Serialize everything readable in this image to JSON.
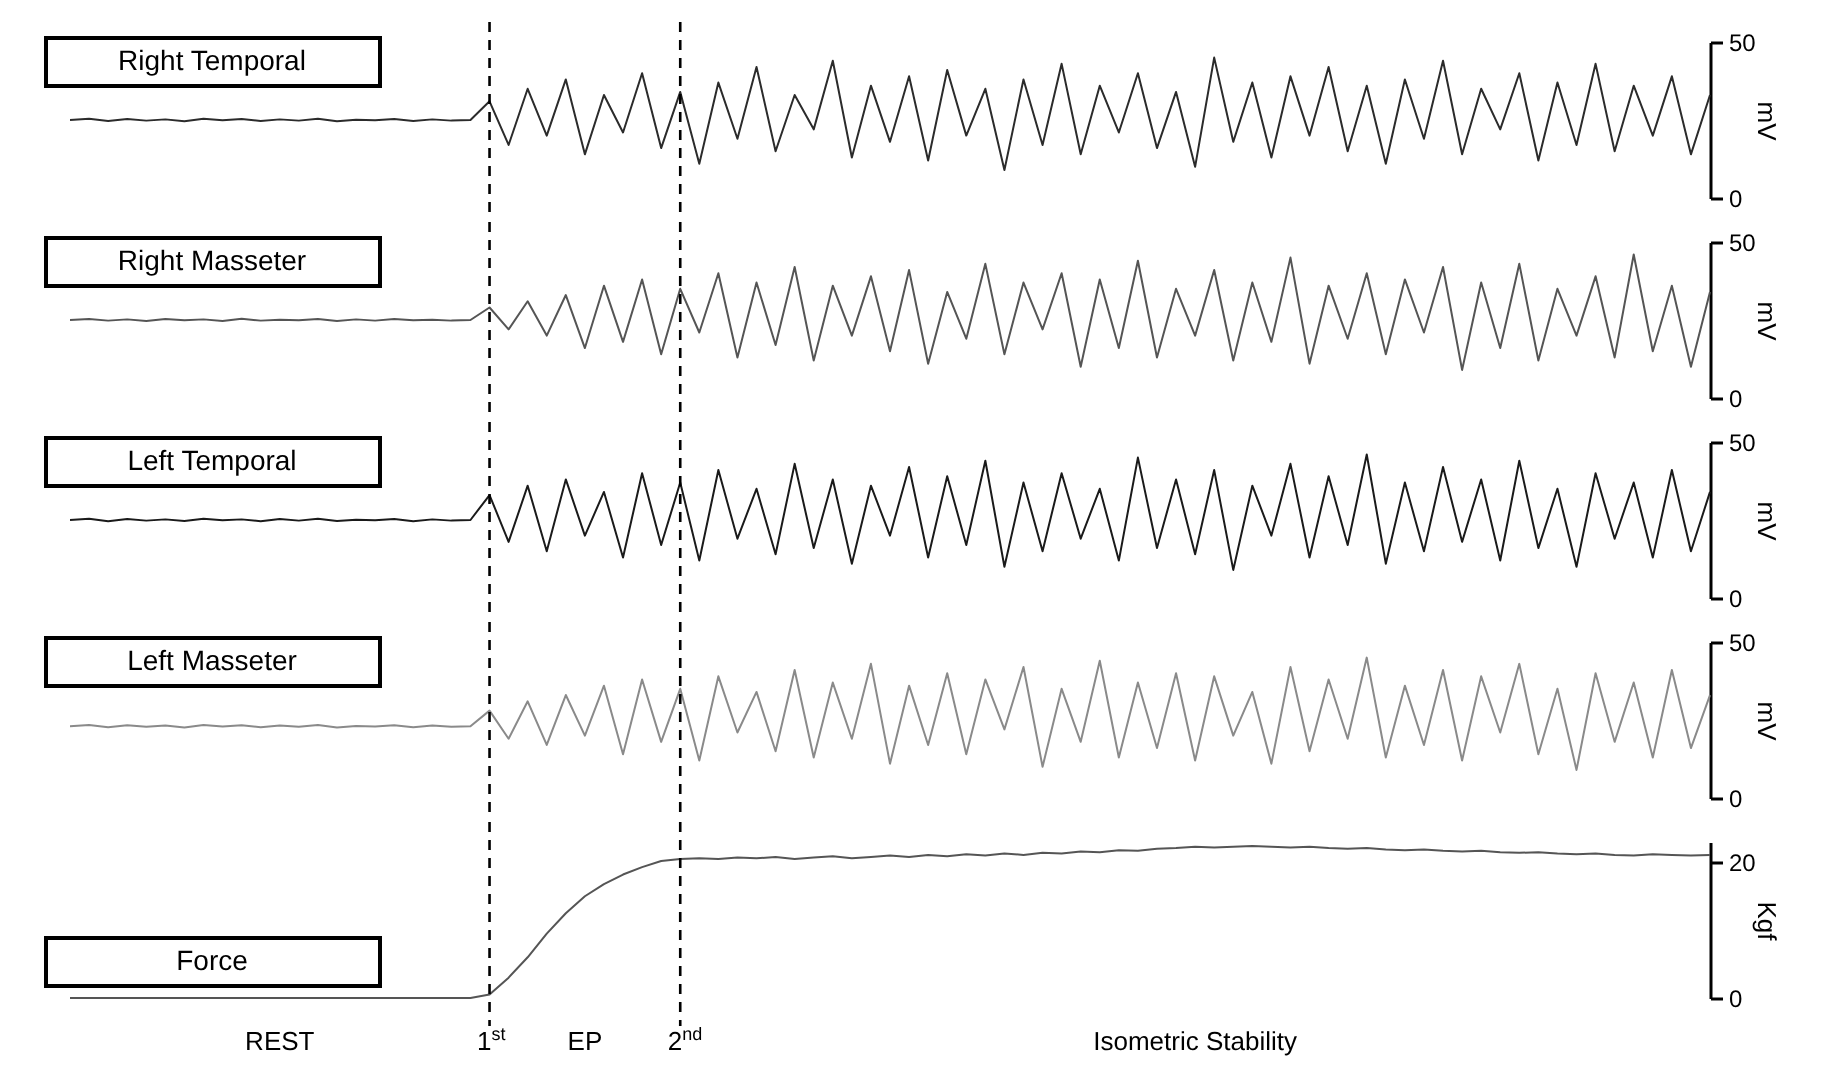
{
  "chart_data": [
    {
      "type": "line",
      "title": "Right Temporal",
      "ylabel": "mV",
      "ylim": [
        0,
        50
      ],
      "yticks": [
        0,
        50
      ],
      "tick_labels": "y",
      "grid": false,
      "categories": [
        null,
        null,
        null,
        null,
        null,
        null,
        null,
        null,
        null,
        null,
        null,
        null,
        null,
        null,
        null,
        null,
        null,
        null,
        null,
        null,
        null,
        null,
        null,
        null,
        null,
        null,
        null,
        null,
        null,
        null,
        null,
        null,
        null,
        null,
        null,
        null,
        null,
        null,
        null,
        null,
        null,
        null,
        null,
        null,
        null,
        null,
        null,
        null,
        null,
        null,
        null,
        null,
        null,
        null,
        null,
        null,
        null,
        null,
        null,
        null,
        null,
        null,
        null,
        null,
        null,
        null,
        null,
        null,
        null,
        null,
        null,
        null,
        null,
        null,
        null,
        null,
        null,
        null,
        null,
        null,
        null,
        null,
        null,
        null,
        null,
        null,
        null
      ],
      "series": [
        {
          "color": "#2b2b2b",
          "values": [
            25,
            25.4,
            24.7,
            25.3,
            24.8,
            25.2,
            24.6,
            25.4,
            24.9,
            25.3,
            24.7,
            25.2,
            24.8,
            25.4,
            24.6,
            25.1,
            24.9,
            25.3,
            24.7,
            25.2,
            24.8,
            25,
            31,
            17,
            35,
            20,
            38,
            14,
            33,
            21,
            40,
            16,
            34,
            11,
            37,
            19,
            42,
            15,
            33,
            22,
            44,
            13,
            36,
            18,
            39,
            12,
            41,
            20,
            35,
            9,
            38,
            17,
            43,
            14,
            36,
            21,
            40,
            16,
            34,
            10,
            45,
            18,
            37,
            13,
            39,
            20,
            42,
            15,
            36,
            11,
            38,
            19,
            44,
            14,
            35,
            22,
            40,
            12,
            37,
            17,
            43,
            15,
            36,
            20,
            39,
            14,
            33
          ]
        }
      ]
    },
    {
      "type": "line",
      "title": "Right Masseter",
      "ylabel": "mV",
      "ylim": [
        0,
        50
      ],
      "yticks": [
        0,
        50
      ],
      "tick_labels": "y",
      "grid": false,
      "categories": [
        null,
        null,
        null,
        null,
        null,
        null,
        null,
        null,
        null,
        null,
        null,
        null,
        null,
        null,
        null,
        null,
        null,
        null,
        null,
        null,
        null,
        null,
        null,
        null,
        null,
        null,
        null,
        null,
        null,
        null,
        null,
        null,
        null,
        null,
        null,
        null,
        null,
        null,
        null,
        null,
        null,
        null,
        null,
        null,
        null,
        null,
        null,
        null,
        null,
        null,
        null,
        null,
        null,
        null,
        null,
        null,
        null,
        null,
        null,
        null,
        null,
        null,
        null,
        null,
        null,
        null,
        null,
        null,
        null,
        null,
        null,
        null,
        null,
        null,
        null,
        null,
        null,
        null,
        null,
        null,
        null,
        null,
        null,
        null,
        null,
        null,
        null
      ],
      "series": [
        {
          "color": "#555555",
          "values": [
            25,
            25.3,
            24.8,
            25.2,
            24.7,
            25.3,
            24.9,
            25.2,
            24.7,
            25.4,
            24.8,
            25.1,
            24.9,
            25.3,
            24.7,
            25.2,
            24.8,
            25.3,
            24.9,
            25.1,
            24.8,
            25,
            29,
            22,
            31,
            20,
            33,
            16,
            36,
            18,
            38,
            14,
            35,
            21,
            40,
            13,
            37,
            17,
            42,
            12,
            36,
            20,
            39,
            15,
            41,
            11,
            34,
            19,
            43,
            14,
            37,
            22,
            40,
            10,
            38,
            16,
            44,
            13,
            35,
            20,
            41,
            12,
            37,
            18,
            45,
            11,
            36,
            19,
            40,
            14,
            38,
            21,
            42,
            9,
            37,
            16,
            43,
            12,
            35,
            20,
            39,
            13,
            46,
            15,
            36,
            10,
            34
          ]
        }
      ]
    },
    {
      "type": "line",
      "title": "Left Temporal",
      "ylabel": "mV",
      "ylim": [
        0,
        50
      ],
      "yticks": [
        0,
        50
      ],
      "tick_labels": "y",
      "grid": false,
      "categories": [
        null,
        null,
        null,
        null,
        null,
        null,
        null,
        null,
        null,
        null,
        null,
        null,
        null,
        null,
        null,
        null,
        null,
        null,
        null,
        null,
        null,
        null,
        null,
        null,
        null,
        null,
        null,
        null,
        null,
        null,
        null,
        null,
        null,
        null,
        null,
        null,
        null,
        null,
        null,
        null,
        null,
        null,
        null,
        null,
        null,
        null,
        null,
        null,
        null,
        null,
        null,
        null,
        null,
        null,
        null,
        null,
        null,
        null,
        null,
        null,
        null,
        null,
        null,
        null,
        null,
        null,
        null,
        null,
        null,
        null,
        null,
        null,
        null,
        null,
        null,
        null,
        null,
        null,
        null,
        null,
        null,
        null,
        null,
        null,
        null,
        null,
        null
      ],
      "series": [
        {
          "color": "#1a1a1a",
          "values": [
            25,
            25.4,
            24.6,
            25.3,
            24.8,
            25.2,
            24.7,
            25.4,
            24.9,
            25.2,
            24.6,
            25.3,
            24.8,
            25.4,
            24.7,
            25.1,
            24.9,
            25.3,
            24.6,
            25.2,
            24.8,
            25,
            33,
            18,
            36,
            15,
            38,
            20,
            34,
            13,
            40,
            17,
            37,
            12,
            41,
            19,
            35,
            14,
            43,
            16,
            38,
            11,
            36,
            20,
            42,
            13,
            39,
            17,
            44,
            10,
            37,
            15,
            40,
            19,
            35,
            12,
            45,
            16,
            38,
            14,
            41,
            9,
            36,
            20,
            43,
            13,
            39,
            17,
            46,
            11,
            37,
            15,
            42,
            18,
            38,
            12,
            44,
            16,
            35,
            10,
            40,
            19,
            37,
            13,
            41,
            15,
            34
          ]
        }
      ]
    },
    {
      "type": "line",
      "title": "Left Masseter",
      "ylabel": "mV",
      "ylim": [
        0,
        50
      ],
      "yticks": [
        0,
        50
      ],
      "tick_labels": "y",
      "grid": false,
      "categories": [
        null,
        null,
        null,
        null,
        null,
        null,
        null,
        null,
        null,
        null,
        null,
        null,
        null,
        null,
        null,
        null,
        null,
        null,
        null,
        null,
        null,
        null,
        null,
        null,
        null,
        null,
        null,
        null,
        null,
        null,
        null,
        null,
        null,
        null,
        null,
        null,
        null,
        null,
        null,
        null,
        null,
        null,
        null,
        null,
        null,
        null,
        null,
        null,
        null,
        null,
        null,
        null,
        null,
        null,
        null,
        null,
        null,
        null,
        null,
        null,
        null,
        null,
        null,
        null,
        null,
        null,
        null,
        null,
        null,
        null,
        null,
        null,
        null,
        null,
        null,
        null,
        null,
        null,
        null,
        null,
        null,
        null,
        null,
        null,
        null,
        null,
        null
      ],
      "series": [
        {
          "color": "#8a8a8a",
          "values": [
            23,
            23.4,
            22.7,
            23.3,
            22.8,
            23.2,
            22.6,
            23.4,
            22.9,
            23.3,
            22.7,
            23.2,
            22.8,
            23.4,
            22.6,
            23.1,
            22.9,
            23.3,
            22.7,
            23.2,
            22.8,
            23,
            28,
            19,
            31,
            17,
            33,
            20,
            36,
            14,
            38,
            18,
            35,
            12,
            39,
            21,
            34,
            15,
            41,
            13,
            37,
            19,
            43,
            11,
            36,
            17,
            40,
            14,
            38,
            22,
            42,
            10,
            35,
            18,
            44,
            13,
            37,
            16,
            40,
            12,
            39,
            20,
            34,
            11,
            42,
            15,
            38,
            19,
            45,
            13,
            36,
            17,
            41,
            12,
            39,
            21,
            43,
            14,
            35,
            9,
            40,
            18,
            37,
            13,
            41,
            16,
            33
          ]
        }
      ]
    },
    {
      "type": "line",
      "title": "Force",
      "ylabel": "Kgf",
      "ylim": [
        0,
        23
      ],
      "yticks": [
        0,
        20
      ],
      "grid": false,
      "categories": [
        null,
        null,
        null,
        null,
        null,
        null,
        null,
        null,
        null,
        null,
        null,
        null,
        null,
        null,
        null,
        null,
        null,
        null,
        null,
        null,
        null,
        null,
        "1$^{st}$",
        null,
        null,
        null,
        null,
        null,
        null,
        null,
        null,
        null,
        "2$^{nd}$",
        null,
        null,
        null,
        null,
        null,
        null,
        null,
        null,
        null,
        null,
        null,
        null,
        null,
        null,
        null,
        null,
        null,
        null,
        null,
        null,
        null,
        null,
        null,
        null,
        null,
        null,
        null,
        null,
        null,
        null,
        null,
        null,
        null,
        null,
        null,
        null,
        null,
        null,
        null,
        null,
        null,
        null,
        null,
        null,
        null,
        null,
        null,
        null,
        null,
        null,
        null,
        null,
        null,
        null
      ],
      "ref_lines": [
        {
          "axis": "x",
          "value": "1$^{st}$",
          "line_style": "dashed",
          "color": "#000000"
        },
        {
          "axis": "x",
          "value": "2$^{nd}$",
          "line_style": "dashed",
          "color": "#000000"
        }
      ],
      "annotations": [
        "REST",
        "EP",
        "Isometric Stability"
      ],
      "series": [
        {
          "color": "#555555",
          "values": [
            0,
            0,
            0,
            0,
            0,
            0,
            0,
            0,
            0,
            0,
            0,
            0,
            0,
            0,
            0,
            0,
            0,
            0,
            0,
            0,
            0,
            0,
            0.5,
            3,
            6,
            9.5,
            12.5,
            15,
            16.8,
            18.2,
            19.3,
            20.2,
            20.5,
            20.6,
            20.5,
            20.7,
            20.6,
            20.8,
            20.5,
            20.7,
            20.9,
            20.6,
            20.8,
            21.0,
            20.8,
            21.1,
            20.9,
            21.2,
            21.0,
            21.3,
            21.1,
            21.4,
            21.3,
            21.6,
            21.5,
            21.8,
            21.7,
            22.0,
            22.1,
            22.3,
            22.2,
            22.3,
            22.4,
            22.3,
            22.2,
            22.3,
            22.1,
            22.0,
            22.1,
            21.9,
            21.8,
            21.9,
            21.7,
            21.6,
            21.7,
            21.5,
            21.4,
            21.5,
            21.3,
            21.2,
            21.3,
            21.1,
            21.0,
            21.2,
            21.1,
            21.0,
            21.1
          ]
        }
      ]
    }
  ]
}
